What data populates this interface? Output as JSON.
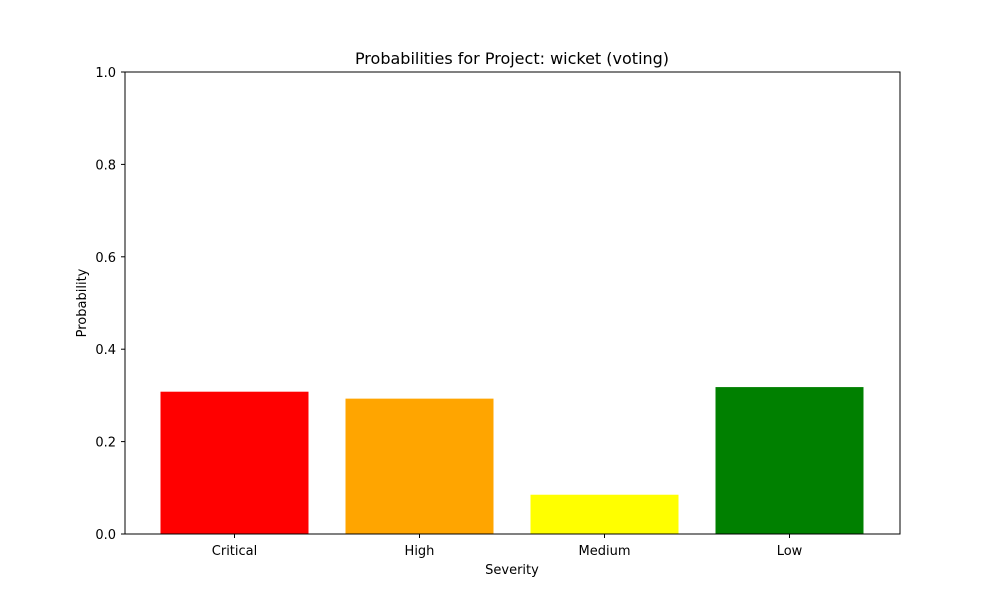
{
  "chart_data": {
    "type": "bar",
    "title": "Probabilities for Project: wicket (voting)",
    "xlabel": "Severity",
    "ylabel": "Probability",
    "categories": [
      "Critical",
      "High",
      "Medium",
      "Low"
    ],
    "values": [
      0.308,
      0.293,
      0.085,
      0.318
    ],
    "colors": [
      "#ff0000",
      "#ffa500",
      "#ffff00",
      "#008000"
    ],
    "ylim": [
      0,
      1
    ],
    "yticks": [
      0.0,
      0.2,
      0.4,
      0.6,
      0.8,
      1.0
    ],
    "ytick_labels": [
      "0.0",
      "0.2",
      "0.4",
      "0.6",
      "0.8",
      "1.0"
    ],
    "grid": false,
    "legend": "none"
  }
}
